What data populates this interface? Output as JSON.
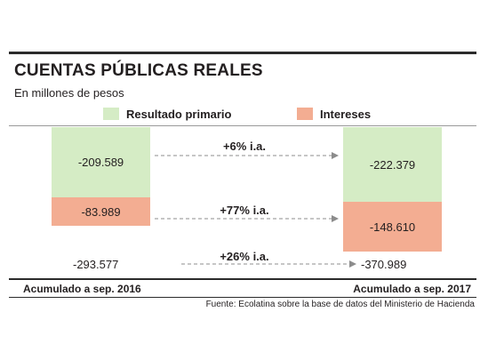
{
  "header": {
    "title": "CUENTAS PÚBLICAS REALES",
    "subtitle": "En millones de pesos"
  },
  "legend": {
    "primary": "Resultado primario",
    "interest": "Intereses"
  },
  "colors": {
    "primary": "#d5ecc5",
    "interest": "#f3ad92",
    "rule": "#2b2b2b"
  },
  "chart_data": {
    "type": "bar",
    "stacked": true,
    "categories": [
      "Acumulado a sep. 2016",
      "Acumulado a sep. 2017"
    ],
    "series": [
      {
        "name": "Resultado primario",
        "values": [
          -209.589,
          -222.379
        ],
        "labels": [
          "-209.589",
          "-222.379"
        ]
      },
      {
        "name": "Intereses",
        "values": [
          -83.989,
          -148.61
        ],
        "labels": [
          "-83.989",
          "-148.610"
        ]
      }
    ],
    "totals": [
      "-293.577",
      "-370.989"
    ],
    "changes": [
      "+6% i.a.",
      "+77% i.a.",
      "+26% i.a."
    ]
  },
  "source": "Fuente: Ecolatina sobre la base de datos del Ministerio de Hacienda"
}
